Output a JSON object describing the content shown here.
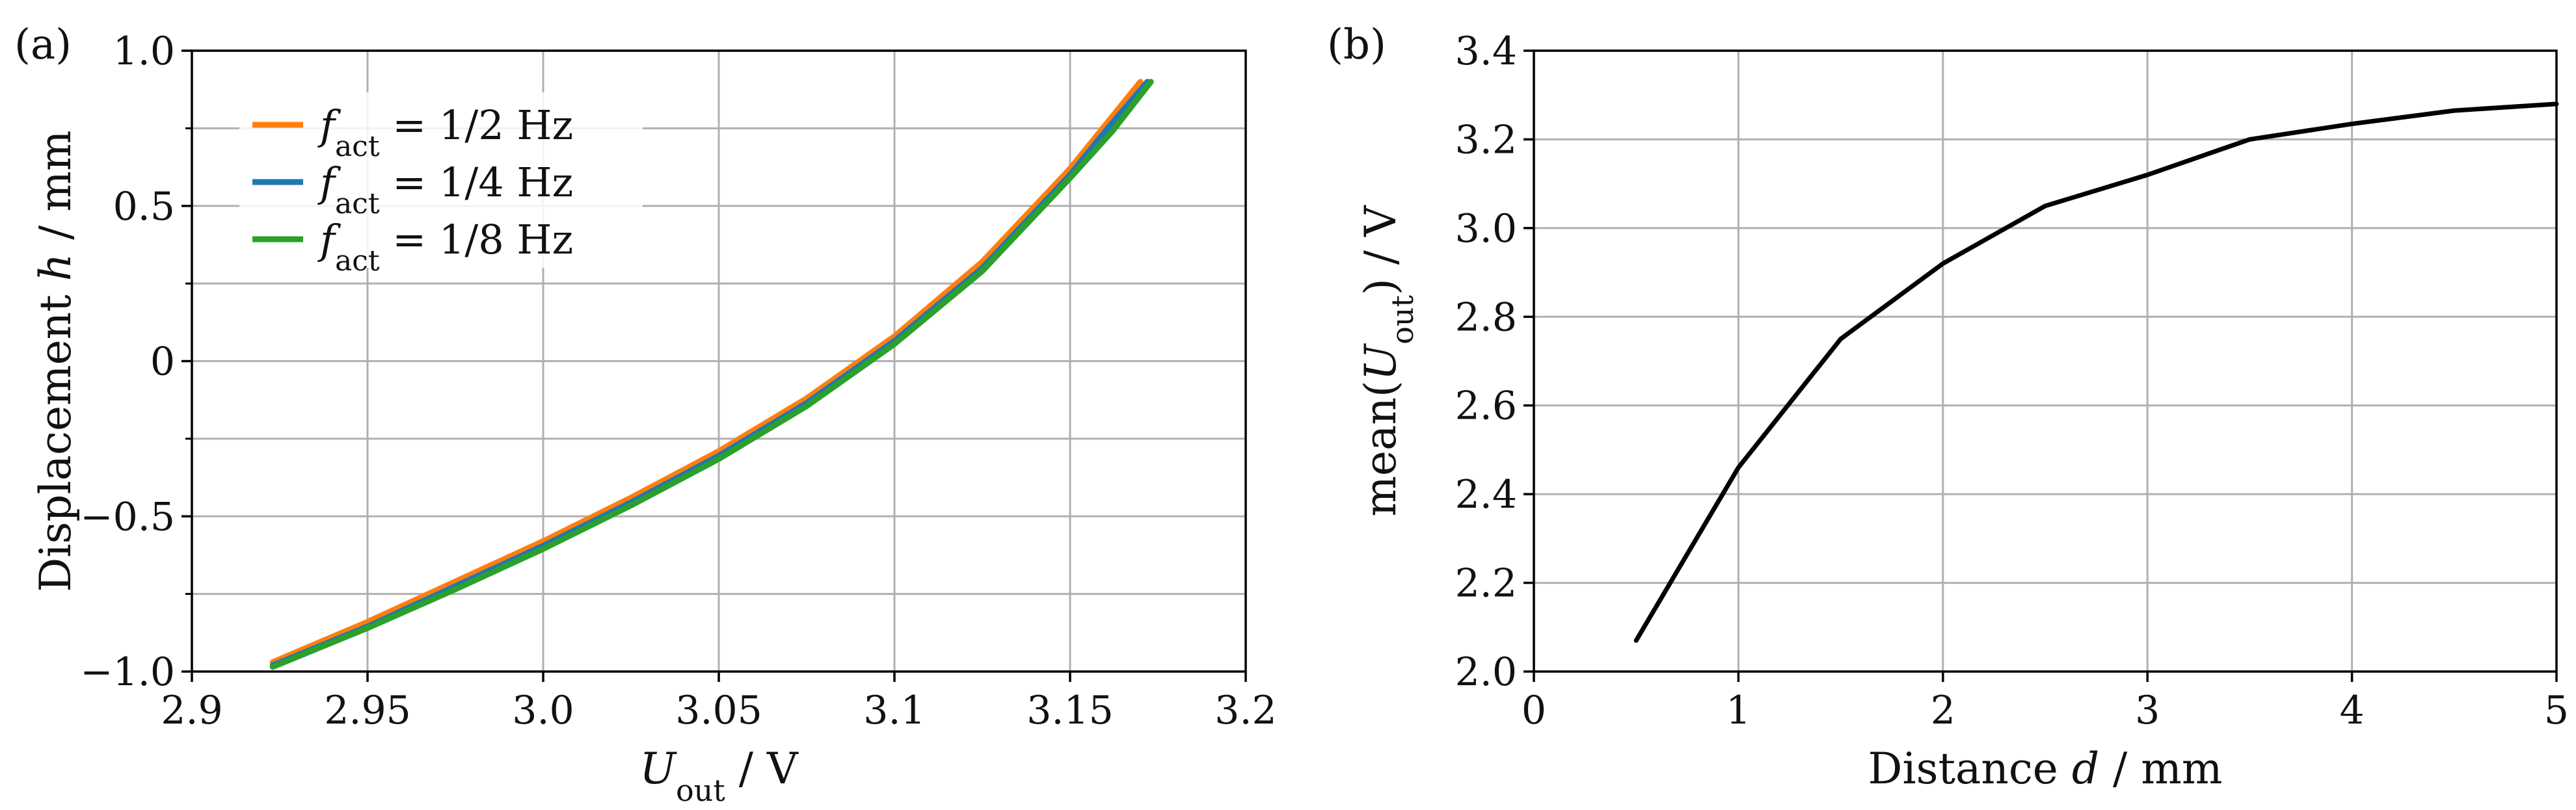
{
  "colors": {
    "orange": "#ff7f0e",
    "blue": "#1f77b4",
    "green": "#2ca02c",
    "black": "#000000",
    "grid": "#b0b0b0"
  },
  "chart_data": [
    {
      "type": "line",
      "panel_label": "(a)",
      "xlabel": "U_out / V",
      "ylabel": "Displacement h / mm",
      "xlim": [
        2.9,
        3.2
      ],
      "ylim": [
        -1.0,
        1.0
      ],
      "grid": true,
      "xticks": [
        2.9,
        2.95,
        3.0,
        3.05,
        3.1,
        3.15,
        3.2
      ],
      "xtick_labels": [
        "2.9",
        "2.95",
        "3.0",
        "3.05",
        "3.1",
        "3.15",
        "3.2"
      ],
      "yticks": [
        -1.0,
        -0.5,
        0.0,
        0.5,
        1.0
      ],
      "ytick_labels": [
        "−1.0",
        "−0.5",
        "0",
        "0.5",
        "1.0"
      ],
      "legend_position": "top-left",
      "series": [
        {
          "name": "f_act = 1/2 Hz",
          "legend_sub": "act",
          "legend_text": " = 1/2 Hz",
          "color": "#ff7f0e",
          "x": [
            2.923,
            2.95,
            2.975,
            3.0,
            3.025,
            3.05,
            3.075,
            3.1,
            3.125,
            3.15,
            3.16,
            3.17
          ],
          "y": [
            -0.97,
            -0.84,
            -0.71,
            -0.58,
            -0.44,
            -0.29,
            -0.12,
            0.08,
            0.32,
            0.62,
            0.76,
            0.9
          ]
        },
        {
          "name": "f_act = 1/4 Hz",
          "legend_sub": "act",
          "legend_text": " = 1/4 Hz",
          "color": "#1f77b4",
          "x": [
            2.923,
            2.95,
            2.975,
            3.0,
            3.025,
            3.05,
            3.075,
            3.1,
            3.125,
            3.15,
            3.16,
            3.172
          ],
          "y": [
            -0.98,
            -0.855,
            -0.725,
            -0.595,
            -0.455,
            -0.305,
            -0.135,
            0.065,
            0.3,
            0.6,
            0.74,
            0.9
          ]
        },
        {
          "name": "f_act = 1/8 Hz",
          "legend_sub": "act",
          "legend_text": " = 1/8 Hz",
          "color": "#2ca02c",
          "x": [
            2.923,
            2.95,
            2.975,
            3.0,
            3.025,
            3.05,
            3.075,
            3.1,
            3.125,
            3.15,
            3.162,
            3.173
          ],
          "y": [
            -0.985,
            -0.86,
            -0.735,
            -0.605,
            -0.465,
            -0.315,
            -0.145,
            0.055,
            0.29,
            0.59,
            0.74,
            0.9
          ]
        }
      ]
    },
    {
      "type": "line",
      "panel_label": "(b)",
      "xlabel": "Distance d / mm",
      "ylabel": "mean(U_out) / V",
      "xlim": [
        0,
        5
      ],
      "ylim": [
        2.0,
        3.4
      ],
      "grid": true,
      "xticks": [
        0,
        1,
        2,
        3,
        4,
        5
      ],
      "xtick_labels": [
        "0",
        "1",
        "2",
        "3",
        "4",
        "5"
      ],
      "yticks": [
        2.0,
        2.2,
        2.4,
        2.6,
        2.8,
        3.0,
        3.2,
        3.4
      ],
      "ytick_labels": [
        "2.0",
        "2.2",
        "2.4",
        "2.6",
        "2.8",
        "3.0",
        "3.2",
        "3.4"
      ],
      "series": [
        {
          "name": "mean(U_out)",
          "color": "#000000",
          "x": [
            0.5,
            1.0,
            1.5,
            2.0,
            2.5,
            3.0,
            3.5,
            4.0,
            4.5,
            5.0
          ],
          "y": [
            2.07,
            2.46,
            2.75,
            2.92,
            3.05,
            3.12,
            3.2,
            3.235,
            3.265,
            3.28
          ]
        }
      ]
    }
  ]
}
